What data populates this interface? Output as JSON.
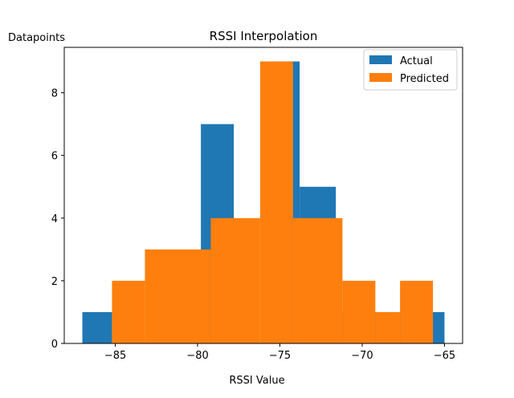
{
  "chart_data": {
    "type": "histogram",
    "title": "RSSI Interpolation",
    "xlabel": "RSSI Value",
    "ylabel": "Datapoints",
    "xlim": [
      -88.1,
      -63.9
    ],
    "ylim": [
      0,
      9.45
    ],
    "xticks": [
      -85,
      -80,
      -75,
      -70,
      -65
    ],
    "xtick_labels": [
      "−85",
      "−80",
      "−75",
      "−70",
      "−65"
    ],
    "yticks": [
      0,
      2,
      4,
      6,
      8
    ],
    "ytick_labels": [
      "0",
      "2",
      "4",
      "6",
      "8"
    ],
    "legend_position": "top-right",
    "grid": false,
    "series": [
      {
        "name": "Actual",
        "color": "#1f77b4",
        "bins": [
          {
            "x0": -87.0,
            "x1": -85.2,
            "value": 1
          },
          {
            "x0": -79.8,
            "x1": -77.8,
            "value": 7
          },
          {
            "x0": -75.6,
            "x1": -73.8,
            "value": 9
          },
          {
            "x0": -73.8,
            "x1": -71.6,
            "value": 5
          },
          {
            "x0": -71.6,
            "x1": -67.6,
            "value": 1
          },
          {
            "x0": -65.8,
            "x1": -65.0,
            "value": 1
          }
        ]
      },
      {
        "name": "Predicted",
        "color": "#ff7f0e",
        "bins": [
          {
            "x0": -85.2,
            "x1": -83.2,
            "value": 2
          },
          {
            "x0": -83.2,
            "x1": -79.2,
            "value": 3
          },
          {
            "x0": -79.2,
            "x1": -76.2,
            "value": 4
          },
          {
            "x0": -76.2,
            "x1": -74.2,
            "value": 9
          },
          {
            "x0": -74.2,
            "x1": -71.2,
            "value": 4
          },
          {
            "x0": -71.2,
            "x1": -69.2,
            "value": 2
          },
          {
            "x0": -69.2,
            "x1": -67.7,
            "value": 1
          },
          {
            "x0": -67.7,
            "x1": -65.7,
            "value": 2
          }
        ]
      }
    ]
  }
}
